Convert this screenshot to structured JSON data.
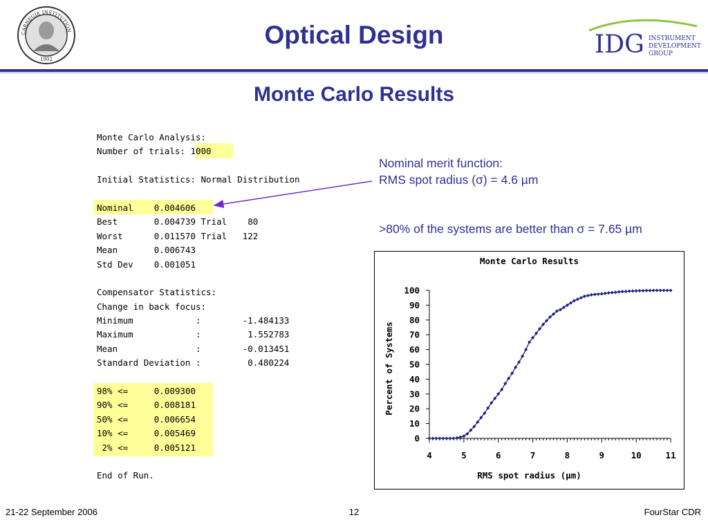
{
  "header": {
    "title": "Optical Design",
    "subtitle": "Monte Carlo Results",
    "logo": {
      "initials": "IDG",
      "line1": "INSTRUMENT",
      "line2": "DEVELOPMENT",
      "line3": "GROUP"
    },
    "seal": {
      "text": "CARNEGIE INSTITUTION OF WASHINGTON",
      "year": "1902"
    }
  },
  "listing": {
    "lines": [
      "Monte Carlo Analysis:",
      "Number of trials: 1000",
      "",
      "Initial Statistics: Normal Distribution",
      "",
      "Nominal    0.004606",
      "Best       0.004739 Trial    80",
      "Worst      0.011570 Trial   122",
      "Mean       0.006743",
      "Std Dev    0.001051",
      "",
      "Compensator Statistics:",
      "Change in back focus:",
      "Minimum            :        -1.484133",
      "Maximum            :         1.552783",
      "Mean               :        -0.013451",
      "Standard Deviation :         0.480224",
      "",
      "98% <=     0.009300",
      "90% <=     0.008181",
      "50% <=     0.006654",
      "10% <=     0.005469",
      " 2% <=     0.005121",
      "",
      "End of Run."
    ]
  },
  "notes": {
    "line1": "Nominal merit function:",
    "line2": "RMS spot radius (σ) = 4.6 µm",
    "line3": ">80% of the systems are better than σ = 7.65 µm"
  },
  "colors": {
    "title": "#2e3192",
    "highlight": "#ffff99",
    "arrow": "#6a2cc9",
    "series": "#1a237e"
  },
  "chart_data": {
    "type": "line",
    "title": "Monte Carlo Results",
    "xlabel": "RMS spot radius (µm)",
    "ylabel": "Percent of Systems",
    "xlim": [
      4,
      11
    ],
    "ylim": [
      0,
      100
    ],
    "xticks": [
      4,
      5,
      6,
      7,
      8,
      9,
      10,
      11
    ],
    "yticks": [
      0,
      10,
      20,
      30,
      40,
      50,
      60,
      70,
      80,
      90,
      100
    ],
    "grid": false,
    "series": [
      {
        "x": [
          4.0,
          4.1,
          4.2,
          4.3,
          4.4,
          4.5,
          4.6,
          4.7,
          4.8,
          4.9,
          5.0,
          5.1,
          5.2,
          5.3,
          5.4,
          5.5,
          5.6,
          5.7,
          5.8,
          5.9,
          6.0,
          6.1,
          6.2,
          6.3,
          6.4,
          6.5,
          6.6,
          6.7,
          6.8,
          6.9,
          7.0,
          7.1,
          7.2,
          7.3,
          7.4,
          7.5,
          7.6,
          7.7,
          7.8,
          7.9,
          8.0,
          8.1,
          8.2,
          8.3,
          8.4,
          8.5,
          8.6,
          8.7,
          8.8,
          8.9,
          9.0,
          9.1,
          9.2,
          9.3,
          9.4,
          9.5,
          9.6,
          9.7,
          9.8,
          9.9,
          10.0,
          10.1,
          10.2,
          10.3,
          10.4,
          10.5,
          10.6,
          10.7,
          10.8,
          10.9,
          11.0
        ],
        "values": [
          0,
          0,
          0,
          0,
          0,
          0,
          0,
          0,
          0.3,
          0.8,
          1.5,
          3,
          5.5,
          8,
          11,
          14,
          17,
          20.5,
          24,
          27,
          30,
          33,
          37,
          40.5,
          44,
          48,
          51.5,
          55.5,
          60,
          65,
          68,
          71,
          74,
          77,
          79.5,
          82,
          84,
          86,
          87,
          88.5,
          90,
          91.5,
          93,
          94,
          95,
          96,
          96.5,
          97,
          97.3,
          97.5,
          97.7,
          98,
          98.3,
          98.5,
          98.7,
          99,
          99.2,
          99.3,
          99.5,
          99.6,
          99.7,
          99.8,
          99.8,
          99.9,
          99.9,
          100,
          100,
          100,
          100,
          100,
          100
        ]
      }
    ]
  },
  "footer": {
    "date": "21-22 September 2006",
    "page": "12",
    "project": "FourStar CDR"
  }
}
